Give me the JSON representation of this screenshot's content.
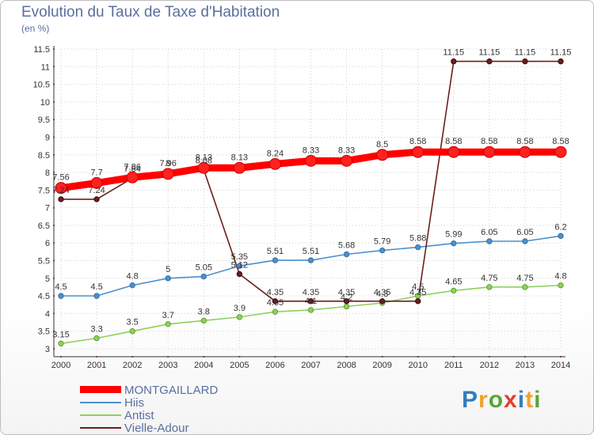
{
  "header": {
    "title": "Evolution du Taux de Taxe d'Habitation",
    "subtitle": "(en %)"
  },
  "logo": {
    "text": "Proxiti"
  },
  "chart_data": {
    "type": "line",
    "x": [
      2000,
      2001,
      2002,
      2003,
      2004,
      2005,
      2006,
      2007,
      2008,
      2009,
      2010,
      2011,
      2012,
      2013,
      2014
    ],
    "ylim": [
      3,
      11.5
    ],
    "yticks": [
      3,
      3.5,
      4,
      4.5,
      5,
      5.5,
      6,
      6.5,
      7,
      7.5,
      8,
      8.5,
      9,
      9.5,
      10,
      10.5,
      11,
      11.5
    ],
    "grid": "horizontal dotted",
    "legend_position": "bottom-left",
    "series": [
      {
        "name": "MONTGAILLARD",
        "color": "#ff0000",
        "values": [
          7.56,
          7.7,
          7.86,
          7.96,
          8.13,
          8.13,
          8.24,
          8.33,
          8.33,
          8.5,
          8.58,
          8.58,
          8.58,
          8.58,
          8.58
        ],
        "labels": [
          "7.56",
          "7.7",
          "7.86",
          "7.96",
          "8.13",
          "8.13",
          "8.24",
          "8.33",
          "8.33",
          "8.5",
          "8.58",
          "8.58",
          "8.58",
          "8.58",
          "8.58"
        ]
      },
      {
        "name": "Hiis",
        "color": "#4a90cf",
        "values": [
          4.5,
          4.5,
          4.8,
          5,
          5.05,
          5.35,
          5.51,
          5.51,
          5.68,
          5.79,
          5.88,
          5.99,
          6.05,
          6.05,
          6.2
        ],
        "labels": [
          "4.5",
          "4.5",
          "4.8",
          "5",
          "5.05",
          "5.35",
          "5.51",
          "5.51",
          "5.68",
          "5.79",
          "5.88",
          "5.99",
          "6.05",
          "6.05",
          "6.2"
        ]
      },
      {
        "name": "Antist",
        "color": "#8fd05c",
        "values": [
          3.15,
          3.3,
          3.5,
          3.7,
          3.8,
          3.9,
          4.05,
          4.1,
          4.2,
          4.3,
          4.5,
          4.65,
          4.75,
          4.75,
          4.8
        ],
        "labels": [
          "3.15",
          "3.3",
          "3.5",
          "3.7",
          "3.8",
          "3.9",
          "4.05",
          "4.1",
          "4.2",
          "4.3",
          "4.5",
          "4.65",
          "4.75",
          "4.75",
          "4.8"
        ]
      },
      {
        "name": "Vielle-Adour",
        "color": "#6b1e1e",
        "values": [
          7.24,
          7.24,
          7.84,
          8,
          8.08,
          5.12,
          4.35,
          4.35,
          4.35,
          4.35,
          4.35,
          11.15,
          11.15,
          11.15,
          11.15
        ],
        "labels": [
          "7.24",
          "7.24",
          "7.84",
          "8",
          "8.08",
          "5.12",
          "4.35",
          "4.35",
          "4.35",
          "4.35",
          "4.35",
          "11.15",
          "11.15",
          "11.15",
          "11.15"
        ]
      }
    ]
  }
}
